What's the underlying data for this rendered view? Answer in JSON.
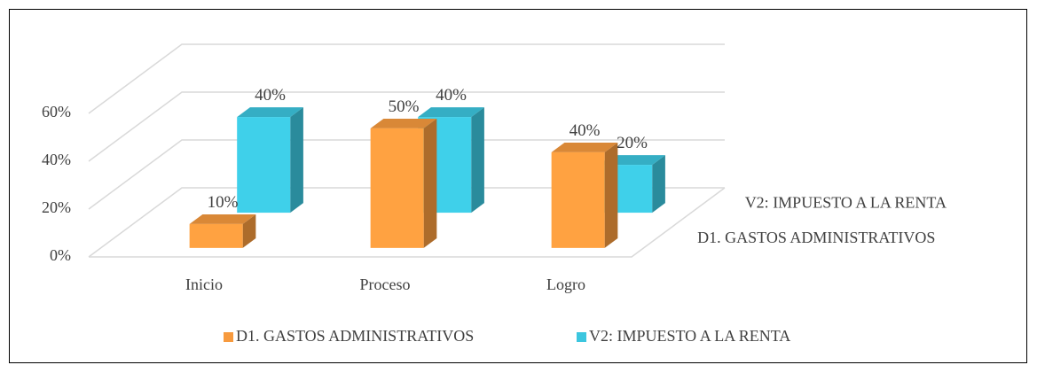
{
  "chart_data": {
    "type": "bar3d",
    "categories": [
      "Inicio",
      "Proceso",
      "Logro"
    ],
    "series": [
      {
        "name": "D1. GASTOS ADMINISTRATIVOS",
        "color": "#f79a3e",
        "values": [
          10,
          50,
          40
        ],
        "value_labels": [
          "10%",
          "50%",
          "40%"
        ]
      },
      {
        "name": "V2: IMPUESTO A LA RENTA",
        "color": "#3cc6df",
        "values": [
          40,
          40,
          20
        ],
        "value_labels": [
          "40%",
          "40%",
          "20%"
        ]
      }
    ],
    "ylim": [
      0,
      60
    ],
    "yticks": [
      {
        "value": 0,
        "label": "0%"
      },
      {
        "value": 20,
        "label": "20%"
      },
      {
        "value": 40,
        "label": "40%"
      },
      {
        "value": 60,
        "label": "60%"
      }
    ],
    "grid": true
  }
}
